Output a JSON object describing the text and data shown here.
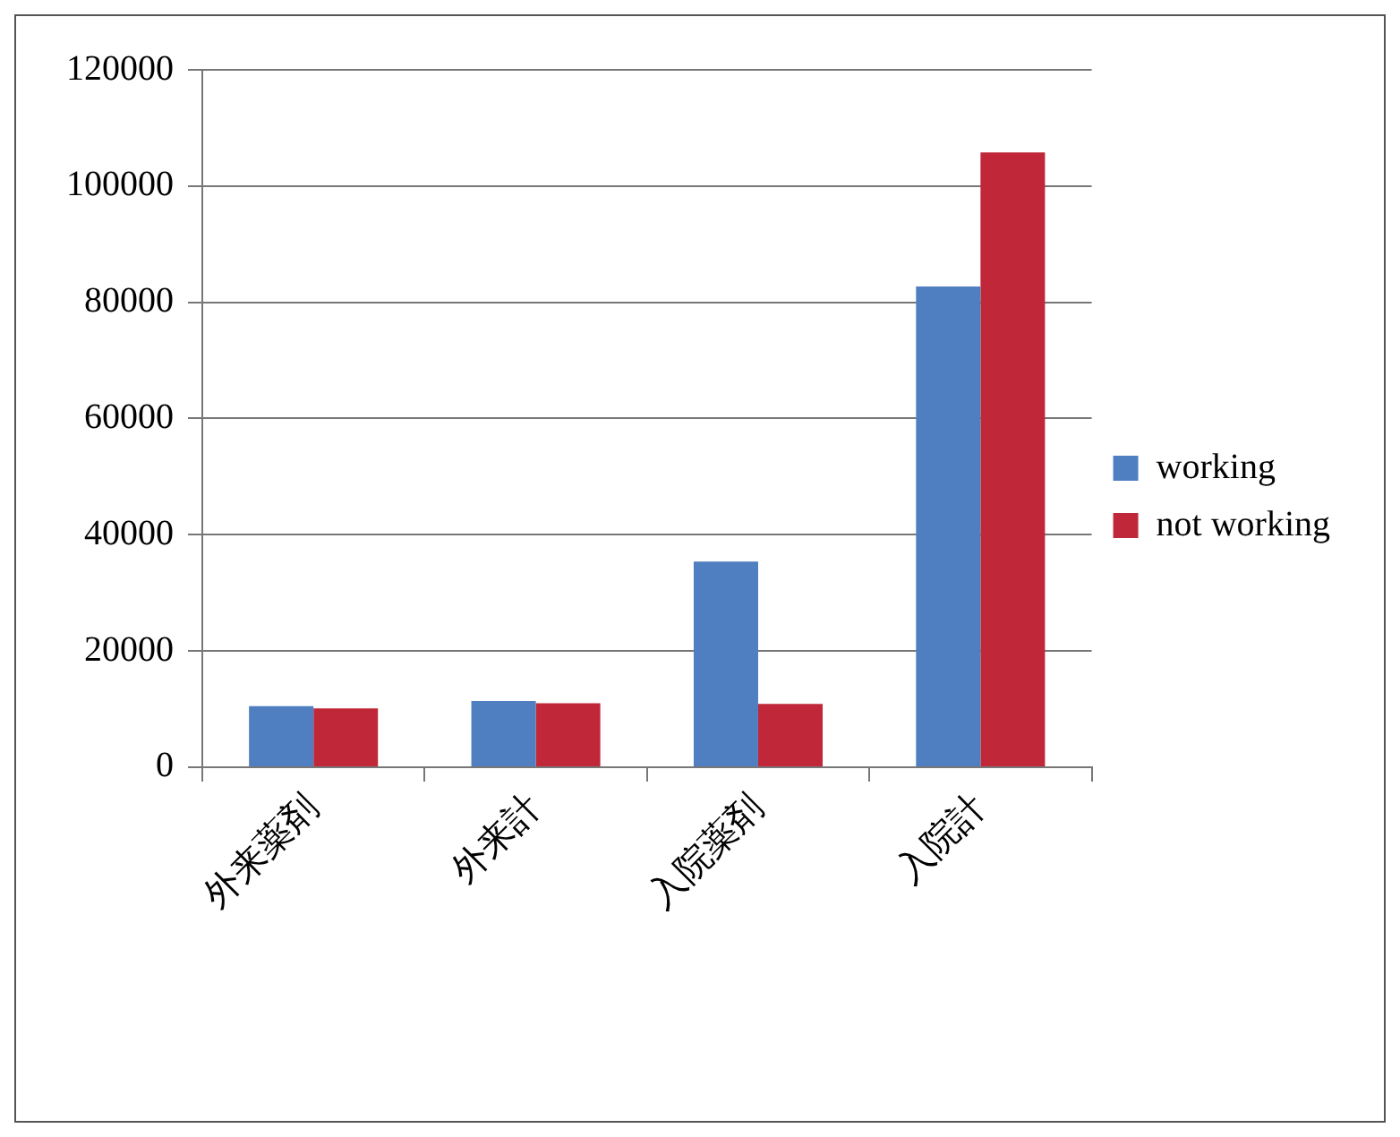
{
  "chart_data": {
    "type": "bar",
    "categories": [
      "外来薬剤",
      "外来計",
      "入院薬剤",
      "入院計"
    ],
    "series": [
      {
        "name": "working",
        "color": "#4f7fc0",
        "values": [
          10500,
          11400,
          35400,
          82700
        ]
      },
      {
        "name": "not working",
        "color": "#c0283a",
        "values": [
          10100,
          11000,
          10900,
          105800
        ]
      }
    ],
    "ylim": [
      0,
      120000
    ],
    "yticks": [
      0,
      20000,
      40000,
      60000,
      80000,
      100000,
      120000
    ],
    "grid": "y",
    "legend": "right"
  }
}
